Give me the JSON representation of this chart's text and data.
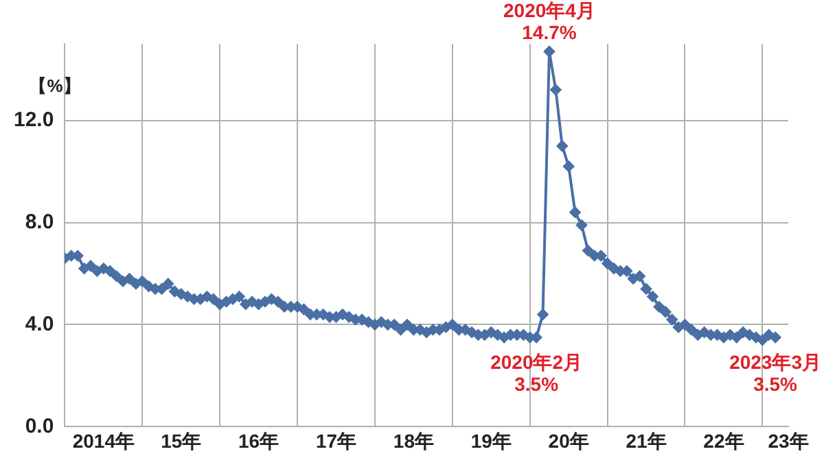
{
  "chart_data": {
    "type": "line",
    "ylabel": "【%】",
    "x": [
      "2014-01",
      "2014-02",
      "2014-03",
      "2014-04",
      "2014-05",
      "2014-06",
      "2014-07",
      "2014-08",
      "2014-09",
      "2014-10",
      "2014-11",
      "2014-12",
      "2015-01",
      "2015-02",
      "2015-03",
      "2015-04",
      "2015-05",
      "2015-06",
      "2015-07",
      "2015-08",
      "2015-09",
      "2015-10",
      "2015-11",
      "2015-12",
      "2016-01",
      "2016-02",
      "2016-03",
      "2016-04",
      "2016-05",
      "2016-06",
      "2016-07",
      "2016-08",
      "2016-09",
      "2016-10",
      "2016-11",
      "2016-12",
      "2017-01",
      "2017-02",
      "2017-03",
      "2017-04",
      "2017-05",
      "2017-06",
      "2017-07",
      "2017-08",
      "2017-09",
      "2017-10",
      "2017-11",
      "2017-12",
      "2018-01",
      "2018-02",
      "2018-03",
      "2018-04",
      "2018-05",
      "2018-06",
      "2018-07",
      "2018-08",
      "2018-09",
      "2018-10",
      "2018-11",
      "2018-12",
      "2019-01",
      "2019-02",
      "2019-03",
      "2019-04",
      "2019-05",
      "2019-06",
      "2019-07",
      "2019-08",
      "2019-09",
      "2019-10",
      "2019-11",
      "2019-12",
      "2020-01",
      "2020-02",
      "2020-03",
      "2020-04",
      "2020-05",
      "2020-06",
      "2020-07",
      "2020-08",
      "2020-09",
      "2020-10",
      "2020-11",
      "2020-12",
      "2021-01",
      "2021-02",
      "2021-03",
      "2021-04",
      "2021-05",
      "2021-06",
      "2021-07",
      "2021-08",
      "2021-09",
      "2021-10",
      "2021-11",
      "2021-12",
      "2022-01",
      "2022-02",
      "2022-03",
      "2022-04",
      "2022-05",
      "2022-06",
      "2022-07",
      "2022-08",
      "2022-09",
      "2022-10",
      "2022-11",
      "2022-12",
      "2023-01",
      "2023-02",
      "2023-03"
    ],
    "series": [
      {
        "color": "#4a6fa5",
        "values": [
          6.6,
          6.7,
          6.7,
          6.2,
          6.3,
          6.1,
          6.2,
          6.1,
          5.9,
          5.7,
          5.8,
          5.6,
          5.7,
          5.5,
          5.4,
          5.4,
          5.6,
          5.3,
          5.2,
          5.1,
          5.0,
          5.0,
          5.1,
          5.0,
          4.8,
          4.9,
          5.0,
          5.1,
          4.8,
          4.9,
          4.8,
          4.9,
          5.0,
          4.9,
          4.7,
          4.7,
          4.7,
          4.6,
          4.4,
          4.4,
          4.4,
          4.3,
          4.3,
          4.4,
          4.3,
          4.2,
          4.2,
          4.1,
          4.0,
          4.1,
          4.0,
          4.0,
          3.8,
          4.0,
          3.8,
          3.8,
          3.7,
          3.8,
          3.8,
          3.9,
          4.0,
          3.8,
          3.8,
          3.7,
          3.6,
          3.6,
          3.7,
          3.6,
          3.5,
          3.6,
          3.6,
          3.6,
          3.5,
          3.5,
          4.4,
          14.7,
          13.2,
          11.0,
          10.2,
          8.4,
          7.9,
          6.9,
          6.7,
          6.7,
          6.4,
          6.2,
          6.1,
          6.1,
          5.8,
          5.9,
          5.4,
          5.1,
          4.7,
          4.5,
          4.2,
          3.9,
          4.0,
          3.8,
          3.6,
          3.7,
          3.6,
          3.6,
          3.5,
          3.6,
          3.5,
          3.7,
          3.6,
          3.5,
          3.4,
          3.6,
          3.5
        ]
      }
    ],
    "xlim": [
      "2014-01",
      "2023-05"
    ],
    "xticks": [
      {
        "value": "2014-01",
        "label": null
      },
      {
        "value": "2014-07",
        "label": "2014年"
      },
      {
        "value": "2015-01",
        "label": null
      },
      {
        "value": "2015-07",
        "label": "15年"
      },
      {
        "value": "2016-01",
        "label": null
      },
      {
        "value": "2016-07",
        "label": "16年"
      },
      {
        "value": "2017-01",
        "label": null
      },
      {
        "value": "2017-07",
        "label": "17年"
      },
      {
        "value": "2018-01",
        "label": null
      },
      {
        "value": "2018-07",
        "label": "18年"
      },
      {
        "value": "2019-01",
        "label": null
      },
      {
        "value": "2019-07",
        "label": "19年"
      },
      {
        "value": "2020-01",
        "label": null
      },
      {
        "value": "2020-07",
        "label": "20年"
      },
      {
        "value": "2021-01",
        "label": null
      },
      {
        "value": "2021-07",
        "label": "21年"
      },
      {
        "value": "2022-01",
        "label": null
      },
      {
        "value": "2022-07",
        "label": "22年"
      },
      {
        "value": "2023-01",
        "label": null
      },
      {
        "value": "2023-05",
        "label": "23年"
      }
    ],
    "ylim": [
      0,
      15
    ],
    "yticks": [
      {
        "value": 0,
        "label": "0.0"
      },
      {
        "value": 4,
        "label": "4.0"
      },
      {
        "value": 8,
        "label": "8.0"
      },
      {
        "value": 12,
        "label": "12.0"
      }
    ],
    "annotations": [
      {
        "text": "2020年4月\n14.7%",
        "x": "2020-04",
        "y": 14.7
      },
      {
        "text": "2020年2月\n3.5%",
        "x": "2020-02",
        "y": 3.5
      },
      {
        "text": "2023年3月\n3.5%",
        "x": "2023-03",
        "y": 3.5
      }
    ],
    "grid": true,
    "legend": false,
    "marker": "diamond",
    "line_style": "solid"
  }
}
